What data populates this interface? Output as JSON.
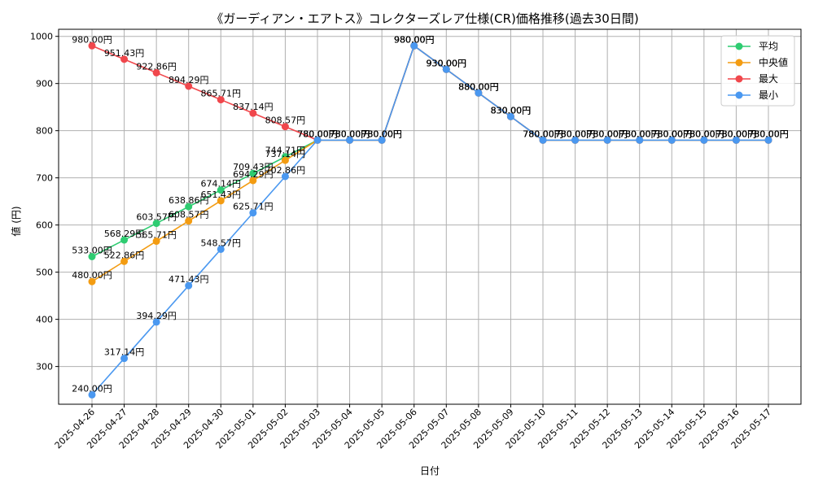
{
  "chart_data": {
    "type": "line",
    "title": "《ガーディアン・エアトス》コレクターズレア仕様(CR)価格推移(過去30日間)",
    "xlabel": "日付",
    "ylabel": "値 (円)",
    "ylim": [
      220,
      1015
    ],
    "yticks": [
      300,
      400,
      500,
      600,
      700,
      800,
      900,
      1000
    ],
    "grid": true,
    "legend_position": "top-right",
    "x": [
      "2025-04-26",
      "2025-04-27",
      "2025-04-28",
      "2025-04-29",
      "2025-04-30",
      "2025-05-01",
      "2025-05-02",
      "2025-05-03",
      "2025-05-04",
      "2025-05-05",
      "2025-05-06",
      "2025-05-07",
      "2025-05-08",
      "2025-05-09",
      "2025-05-10",
      "2025-05-11",
      "2025-05-12",
      "2025-05-13",
      "2025-05-14",
      "2025-05-15",
      "2025-05-16",
      "2025-05-17"
    ],
    "series": [
      {
        "name": "平均",
        "color": "#2ecc71",
        "values": [
          533.0,
          568.29,
          603.57,
          638.86,
          674.14,
          709.43,
          744.71,
          780,
          780,
          780,
          980,
          930,
          880,
          830,
          780,
          780,
          780,
          780,
          780,
          780,
          780,
          780
        ],
        "labels": [
          "533.00円",
          "568.29円",
          "603.57円",
          "638.86円",
          "674.14円",
          "709.43円",
          "744.71円",
          "780.00円",
          "780.00円",
          "780.00円",
          "980.00円",
          "930.00円",
          "880.00円",
          "830.00円",
          "780.00円",
          "780.00円",
          "780.00円",
          "780.00円",
          "780.00円",
          "780.00円",
          "780.00円",
          "780.00円"
        ]
      },
      {
        "name": "中央値",
        "color": "#f39c12",
        "values": [
          480.0,
          522.86,
          565.71,
          608.57,
          651.43,
          694.29,
          737.14,
          780,
          780,
          780,
          980,
          930,
          880,
          830,
          780,
          780,
          780,
          780,
          780,
          780,
          780,
          780
        ],
        "labels": [
          "480.00円",
          "522.86円",
          "565.71円",
          "608.57円",
          "651.43円",
          "694.29円",
          "737.14円",
          "780.00円",
          "780.00円",
          "780.00円",
          "980.00円",
          "930.00円",
          "880.00円",
          "830.00円",
          "780.00円",
          "780.00円",
          "780.00円",
          "780.00円",
          "780.00円",
          "780.00円",
          "780.00円",
          "780.00円"
        ]
      },
      {
        "name": "最大",
        "color": "#f0474c",
        "values": [
          980.0,
          951.43,
          922.86,
          894.29,
          865.71,
          837.14,
          808.57,
          780,
          780,
          780,
          980,
          930,
          880,
          830,
          780,
          780,
          780,
          780,
          780,
          780,
          780,
          780
        ],
        "labels": [
          "980.00円",
          "951.43円",
          "922.86円",
          "894.29円",
          "865.71円",
          "837.14円",
          "808.57円",
          "780.00円",
          "780.00円",
          "780.00円",
          "980.00円",
          "930.00円",
          "880.00円",
          "830.00円",
          "780.00円",
          "780.00円",
          "780.00円",
          "780.00円",
          "780.00円",
          "780.00円",
          "780.00円",
          "780.00円"
        ]
      },
      {
        "name": "最小",
        "color": "#4a98f0",
        "values": [
          240.0,
          317.14,
          394.29,
          471.43,
          548.57,
          625.71,
          702.86,
          780,
          780,
          780,
          980,
          930,
          880,
          830,
          780,
          780,
          780,
          780,
          780,
          780,
          780,
          780
        ],
        "labels": [
          "240.00円",
          "317.14円",
          "394.29円",
          "471.43円",
          "548.57円",
          "625.71円",
          "702.86円",
          "780.00円",
          "780.00円",
          "780.00円",
          "980.00円",
          "930.00円",
          "880.00円",
          "830.00円",
          "780.00円",
          "780.00円",
          "780.00円",
          "780.00円",
          "780.00円",
          "780.00円",
          "780.00円",
          "780.00円"
        ]
      }
    ]
  }
}
